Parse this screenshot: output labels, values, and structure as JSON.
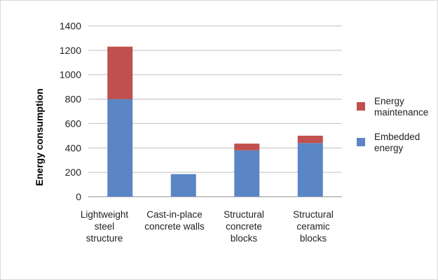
{
  "chart_data": {
    "type": "bar",
    "stacked": true,
    "title": "",
    "ylabel": "Energy consumption",
    "xlabel": "",
    "ylim": [
      0,
      1400
    ],
    "yticks": [
      0,
      200,
      400,
      600,
      800,
      1000,
      1200,
      1400
    ],
    "grid": true,
    "legend_position": "right",
    "categories": [
      [
        "Lightweight",
        "steel",
        "structure"
      ],
      [
        "Cast-in-place",
        "concrete walls"
      ],
      [
        "Structural",
        "concrete",
        "blocks"
      ],
      [
        "Structural",
        "ceramic",
        "blocks"
      ]
    ],
    "series": [
      {
        "name": "Embedded energy",
        "legend_lines": [
          "Embedded",
          "energy"
        ],
        "color": "#5b86c5",
        "values": [
          800,
          185,
          380,
          440
        ]
      },
      {
        "name": "Energy maintenance",
        "legend_lines": [
          "Energy",
          "maintenance"
        ],
        "color": "#c0504d",
        "values": [
          430,
          0,
          55,
          60
        ]
      }
    ]
  }
}
